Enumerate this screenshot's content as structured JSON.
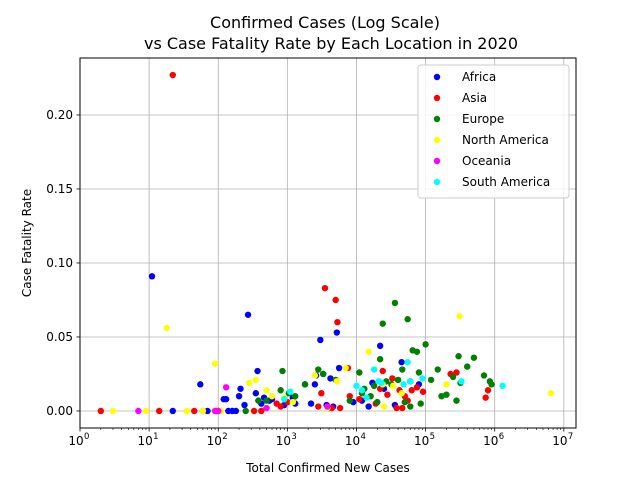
{
  "chart_data": {
    "type": "scatter",
    "title": "Confirmed Cases (Log Scale)",
    "subtitle": "vs Case Fatality Rate by Each Location in 2020",
    "xlabel": "Total Confirmed New Cases",
    "ylabel": "Case Fatality Rate",
    "xscale": "log",
    "xlim": [
      1,
      15000000
    ],
    "ylim": [
      -0.0115,
      0.2385
    ],
    "grid": true,
    "legend_position": "top-right",
    "xticks": [
      {
        "value": 1,
        "base": "10",
        "exp": "0"
      },
      {
        "value": 10,
        "base": "10",
        "exp": "1"
      },
      {
        "value": 100,
        "base": "10",
        "exp": "2"
      },
      {
        "value": 1000,
        "base": "10",
        "exp": "3"
      },
      {
        "value": 10000,
        "base": "10",
        "exp": "4"
      },
      {
        "value": 100000,
        "base": "10",
        "exp": "5"
      },
      {
        "value": 1000000,
        "base": "10",
        "exp": "6"
      },
      {
        "value": 10000000,
        "base": "10",
        "exp": "7"
      }
    ],
    "yticks": [
      "0.00",
      "0.05",
      "0.10",
      "0.15",
      "0.20"
    ],
    "series": [
      {
        "name": "Africa",
        "color": "#0000ff",
        "points": [
          [
            11,
            0.091
          ],
          [
            22,
            0.0
          ],
          [
            55,
            0.018
          ],
          [
            70,
            0.0
          ],
          [
            120,
            0.008
          ],
          [
            130,
            0.008
          ],
          [
            140,
            0.0
          ],
          [
            160,
            0.0
          ],
          [
            180,
            0.0
          ],
          [
            200,
            0.01
          ],
          [
            210,
            0.015
          ],
          [
            240,
            0.004
          ],
          [
            270,
            0.065
          ],
          [
            350,
            0.012
          ],
          [
            370,
            0.027
          ],
          [
            420,
            0.005
          ],
          [
            460,
            0.009
          ],
          [
            550,
            0.007
          ],
          [
            600,
            0.008
          ],
          [
            900,
            0.004
          ],
          [
            1000,
            0.006
          ],
          [
            1200,
            0.009
          ],
          [
            1300,
            0.005
          ],
          [
            1800,
            0.018
          ],
          [
            2200,
            0.005
          ],
          [
            2500,
            0.018
          ],
          [
            2600,
            0.024
          ],
          [
            3000,
            0.048
          ],
          [
            3300,
            0.025
          ],
          [
            3700,
            0.004
          ],
          [
            4200,
            0.022
          ],
          [
            4600,
            0.003
          ],
          [
            5200,
            0.053
          ],
          [
            5600,
            0.029
          ],
          [
            9000,
            0.006
          ],
          [
            12000,
            0.007
          ],
          [
            15000,
            0.003
          ],
          [
            17000,
            0.019
          ],
          [
            22000,
            0.044
          ],
          [
            25000,
            0.015
          ],
          [
            36000,
            0.004
          ],
          [
            45000,
            0.033
          ],
          [
            60000,
            0.02
          ],
          [
            80000,
            0.018
          ]
        ]
      },
      {
        "name": "Asia",
        "color": "#ff0000",
        "points": [
          [
            2,
            0.0
          ],
          [
            14,
            0.0
          ],
          [
            22,
            0.227
          ],
          [
            45,
            0.0
          ],
          [
            60,
            0.0
          ],
          [
            95,
            0.0
          ],
          [
            330,
            0.0
          ],
          [
            420,
            0.0
          ],
          [
            700,
            0.005
          ],
          [
            800,
            0.003
          ],
          [
            1000,
            0.006
          ],
          [
            2800,
            0.003
          ],
          [
            3100,
            0.012
          ],
          [
            3500,
            0.083
          ],
          [
            3900,
            0.002
          ],
          [
            4400,
            0.002
          ],
          [
            5000,
            0.075
          ],
          [
            5300,
            0.06
          ],
          [
            5800,
            0.002
          ],
          [
            7500,
            0.029
          ],
          [
            8000,
            0.01
          ],
          [
            11000,
            0.008
          ],
          [
            19000,
            0.005
          ],
          [
            22000,
            0.015
          ],
          [
            24000,
            0.027
          ],
          [
            28000,
            0.011
          ],
          [
            33000,
            0.022
          ],
          [
            38000,
            0.002
          ],
          [
            42000,
            0.014
          ],
          [
            46000,
            0.002
          ],
          [
            50000,
            0.01
          ],
          [
            55000,
            0.007
          ],
          [
            63000,
            0.014
          ],
          [
            75000,
            0.016
          ],
          [
            92000,
            0.013
          ],
          [
            230000,
            0.025
          ],
          [
            280000,
            0.026
          ],
          [
            740000,
            0.009
          ],
          [
            800000,
            0.014
          ]
        ]
      },
      {
        "name": "Europe",
        "color": "#008000",
        "points": [
          [
            250,
            0.0
          ],
          [
            380,
            0.007
          ],
          [
            500,
            0.007
          ],
          [
            800,
            0.014
          ],
          [
            850,
            0.027
          ],
          [
            1050,
            0.012
          ],
          [
            1300,
            0.01
          ],
          [
            1800,
            0.018
          ],
          [
            2800,
            0.028
          ],
          [
            3300,
            0.025
          ],
          [
            5000,
            0.021
          ],
          [
            8000,
            0.007
          ],
          [
            11000,
            0.026
          ],
          [
            12000,
            0.012
          ],
          [
            13000,
            0.015
          ],
          [
            16000,
            0.01
          ],
          [
            18000,
            0.017
          ],
          [
            20000,
            0.006
          ],
          [
            22000,
            0.035
          ],
          [
            24000,
            0.059
          ],
          [
            27000,
            0.02
          ],
          [
            32000,
            0.018
          ],
          [
            36000,
            0.073
          ],
          [
            40000,
            0.021
          ],
          [
            46000,
            0.028
          ],
          [
            50000,
            0.006
          ],
          [
            55000,
            0.062
          ],
          [
            60000,
            0.003
          ],
          [
            65000,
            0.041
          ],
          [
            75000,
            0.04
          ],
          [
            80000,
            0.026
          ],
          [
            85000,
            0.005
          ],
          [
            100000,
            0.045
          ],
          [
            120000,
            0.021
          ],
          [
            150000,
            0.028
          ],
          [
            170000,
            0.01
          ],
          [
            200000,
            0.011
          ],
          [
            250000,
            0.023
          ],
          [
            280000,
            0.007
          ],
          [
            300000,
            0.037
          ],
          [
            320000,
            0.019
          ],
          [
            400000,
            0.03
          ],
          [
            500000,
            0.036
          ],
          [
            700000,
            0.024
          ],
          [
            850000,
            0.02
          ],
          [
            900000,
            0.018
          ]
        ]
      },
      {
        "name": "North America",
        "color": "#ffff00",
        "points": [
          [
            3,
            0.0
          ],
          [
            9,
            0.0
          ],
          [
            18,
            0.056
          ],
          [
            35,
            0.0
          ],
          [
            60,
            0.0
          ],
          [
            90,
            0.032
          ],
          [
            110,
            0.0
          ],
          [
            280,
            0.019
          ],
          [
            350,
            0.021
          ],
          [
            500,
            0.014
          ],
          [
            600,
            0.01
          ],
          [
            900,
            0.009
          ],
          [
            1200,
            0.006
          ],
          [
            2500,
            0.024
          ],
          [
            3800,
            0.002
          ],
          [
            5200,
            0.02
          ],
          [
            7000,
            0.029
          ],
          [
            15000,
            0.04
          ],
          [
            24000,
            0.018
          ],
          [
            25000,
            0.003
          ],
          [
            34000,
            0.017
          ],
          [
            45000,
            0.012
          ],
          [
            200000,
            0.018
          ],
          [
            310000,
            0.064
          ],
          [
            6500000,
            0.012
          ]
        ]
      },
      {
        "name": "Oceania",
        "color": "#ff00ff",
        "points": [
          [
            7,
            0.0
          ],
          [
            90,
            0.0
          ],
          [
            100,
            0.0
          ],
          [
            130,
            0.016
          ],
          [
            500,
            0.002
          ],
          [
            3800,
            0.003
          ]
        ]
      },
      {
        "name": "South America",
        "color": "#00ffff",
        "points": [
          [
            900,
            0.008
          ],
          [
            1100,
            0.013
          ],
          [
            10000,
            0.017
          ],
          [
            12000,
            0.014
          ],
          [
            14000,
            0.009
          ],
          [
            18000,
            0.028
          ],
          [
            21000,
            0.02
          ],
          [
            23000,
            0.019
          ],
          [
            48000,
            0.018
          ],
          [
            55000,
            0.033
          ],
          [
            60000,
            0.02
          ],
          [
            90000,
            0.022
          ],
          [
            330000,
            0.02
          ],
          [
            1300000,
            0.017
          ]
        ]
      }
    ]
  }
}
